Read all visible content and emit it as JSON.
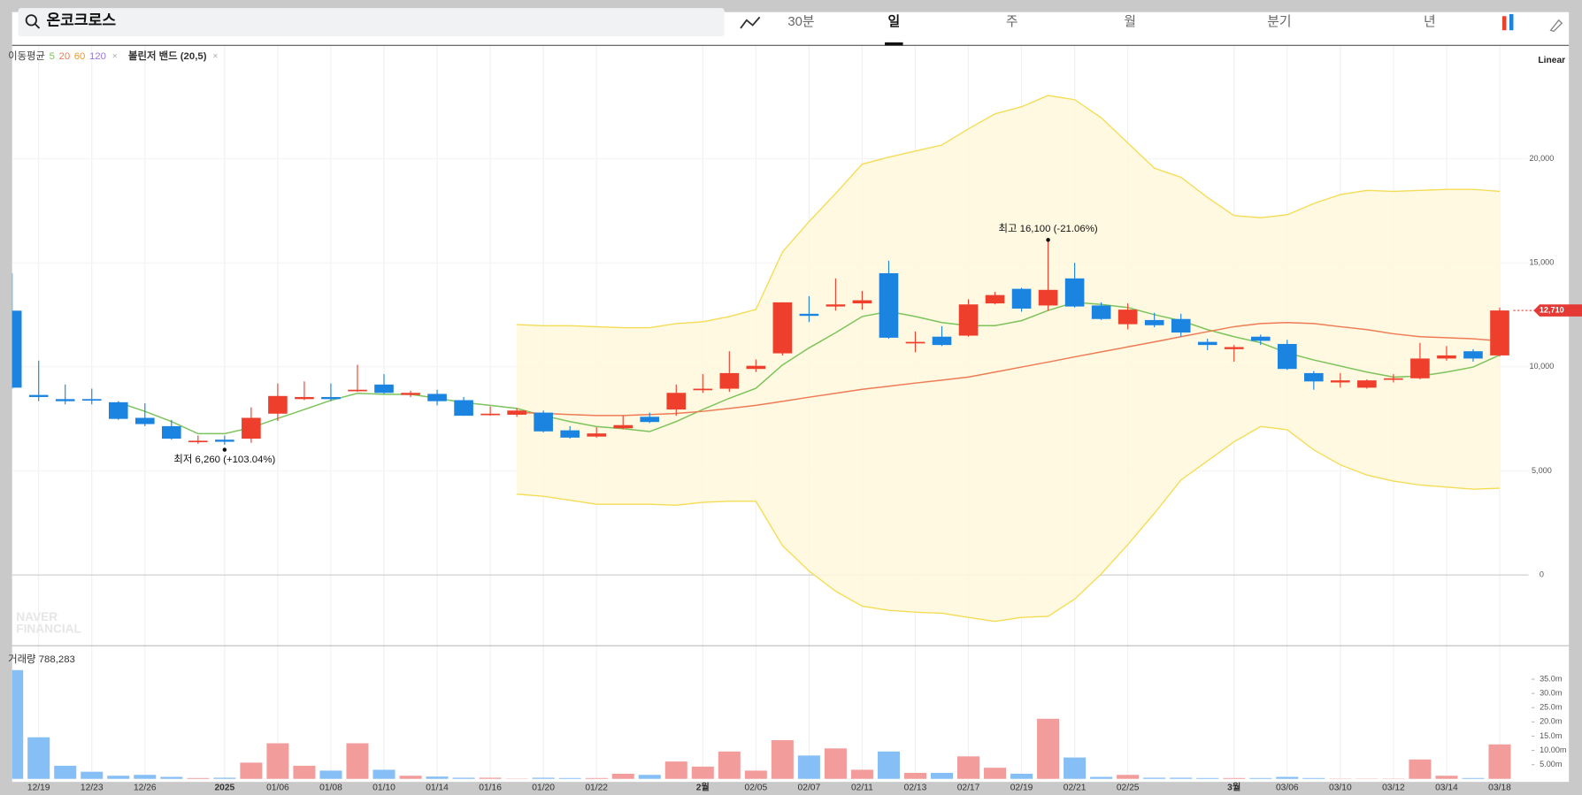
{
  "toolbar": {
    "search": "온코크로스",
    "tabs": [
      "30분",
      "일",
      "주",
      "월",
      "분기",
      "년"
    ],
    "active_tab": 1
  },
  "watermark": [
    "NAVER",
    "FINANCIAL"
  ],
  "chart_data": {
    "type": "candlestick",
    "categories": [
      null,
      "12/19",
      null,
      "12/23",
      null,
      "12/26",
      null,
      null,
      "2025",
      null,
      "01/06",
      null,
      "01/08",
      null,
      "01/10",
      null,
      "01/14",
      null,
      "01/16",
      null,
      "01/20",
      null,
      "01/22",
      null,
      null,
      null,
      "2월",
      null,
      "02/05",
      null,
      "02/07",
      null,
      "02/11",
      null,
      "02/13",
      null,
      "02/17",
      null,
      "02/19",
      null,
      "02/21",
      null,
      "02/25",
      null,
      null,
      null,
      "3월",
      null,
      "03/06",
      null,
      "03/10",
      null,
      "03/12",
      null,
      "03/14",
      null,
      "03/18"
    ],
    "open": [
      12700,
      8650,
      8450,
      8450,
      8300,
      7550,
      7150,
      6400,
      6500,
      6550,
      7750,
      8450,
      8550,
      8850,
      9150,
      8650,
      8700,
      8400,
      7700,
      7700,
      7800,
      6950,
      6650,
      7050,
      7600,
      7950,
      8900,
      8950,
      9900,
      10650,
      12550,
      12900,
      13050,
      14500,
      11150,
      11450,
      11500,
      13050,
      13750,
      12950,
      14250,
      12950,
      12050,
      12250,
      12300,
      11200,
      10850,
      11450,
      11100,
      9700,
      9250,
      9000,
      9400,
      9450,
      10400,
      10750,
      10550
    ],
    "high": [
      14500,
      10300,
      9150,
      8950,
      8350,
      8250,
      7450,
      6700,
      6700,
      8050,
      9200,
      9300,
      9200,
      10100,
      9650,
      8850,
      8900,
      8550,
      8100,
      8000,
      7900,
      7150,
      7100,
      7650,
      7800,
      9150,
      9650,
      10750,
      10350,
      13100,
      13400,
      14250,
      13650,
      15100,
      11700,
      11950,
      13250,
      13600,
      13800,
      16100,
      15000,
      13100,
      13050,
      12600,
      12550,
      11350,
      11050,
      11550,
      11300,
      9800,
      9700,
      9400,
      9650,
      11150,
      11000,
      10850,
      12850
    ],
    "low": [
      8950,
      8350,
      8200,
      8200,
      7450,
      7150,
      6500,
      6300,
      6260,
      6350,
      7400,
      8400,
      8350,
      8800,
      8700,
      8550,
      8150,
      7650,
      7650,
      7600,
      6850,
      6550,
      6600,
      7000,
      7300,
      7650,
      8750,
      8800,
      9750,
      10550,
      12150,
      12700,
      12750,
      11350,
      10700,
      11000,
      11450,
      13000,
      12650,
      12700,
      12850,
      12250,
      11800,
      11900,
      11450,
      10800,
      10250,
      11050,
      9850,
      8900,
      9000,
      8950,
      9250,
      9400,
      10300,
      10250,
      10500
    ],
    "close": [
      9000,
      8550,
      8350,
      8380,
      7500,
      7250,
      6550,
      6450,
      6400,
      7550,
      8600,
      8550,
      8450,
      8900,
      8750,
      8750,
      8350,
      7650,
      7750,
      7900,
      6900,
      6600,
      6800,
      7200,
      7350,
      8750,
      8950,
      9700,
      10050,
      13100,
      12450,
      13000,
      13200,
      11400,
      11200,
      11050,
      13000,
      13450,
      12800,
      13700,
      12900,
      12300,
      12750,
      12000,
      11650,
      11050,
      10950,
      11250,
      9900,
      9300,
      9350,
      9350,
      9450,
      10400,
      10550,
      10400,
      12710
    ],
    "up_color": "#ee3f2c",
    "down_color": "#1a84e0",
    "ylim": [
      -3400,
      25400
    ],
    "yticks": [
      0,
      {
        "value": 5000,
        "label": "5,000"
      },
      {
        "value": 10000,
        "label": "10,000"
      },
      {
        "value": 15000,
        "label": "15,000"
      },
      {
        "value": 20000,
        "label": "20,000"
      }
    ],
    "last_price": {
      "value": 12710,
      "label": "12,710"
    },
    "scale_label": "Linear",
    "ma_label": "이동평균",
    "ma_series": [
      {
        "name": "5",
        "color": "#7cc35a",
        "values": [
          null,
          null,
          null,
          null,
          8290,
          7860,
          7370,
          6790,
          6790,
          7080,
          7520,
          7950,
          8390,
          8730,
          8680,
          8680,
          8490,
          8290,
          8150,
          8000,
          7660,
          7370,
          7130,
          7030,
          6890,
          7370,
          7950,
          8490,
          8970,
          10090,
          10910,
          11640,
          12420,
          12660,
          12420,
          12130,
          11980,
          11980,
          12220,
          12710,
          13100,
          13000,
          12850,
          12510,
          12220,
          11790,
          11450,
          11160,
          10670,
          10330,
          10040,
          9750,
          9510,
          9560,
          9750,
          9990,
          10570
        ]
      },
      {
        "name": "20",
        "color": "#ef7b55",
        "values": [
          null,
          null,
          null,
          null,
          null,
          null,
          null,
          null,
          null,
          null,
          null,
          null,
          null,
          null,
          null,
          null,
          null,
          null,
          null,
          7810,
          7760,
          7710,
          7660,
          7660,
          7710,
          7760,
          7860,
          8000,
          8150,
          8340,
          8540,
          8730,
          8920,
          9070,
          9220,
          9360,
          9510,
          9750,
          9990,
          10230,
          10480,
          10720,
          10960,
          11200,
          11450,
          11690,
          11930,
          12080,
          12130,
          12080,
          11930,
          11790,
          11590,
          11450,
          11400,
          11350,
          11250
        ]
      },
      {
        "name": "60",
        "color": "#f09a2a",
        "values": [
          null,
          null,
          null,
          null,
          null,
          null,
          null,
          null,
          null,
          null,
          null,
          null,
          null,
          null,
          null,
          null,
          null,
          null,
          null,
          null,
          null,
          null,
          null,
          null,
          null,
          null,
          null,
          null,
          null,
          null,
          null,
          null,
          null,
          null,
          null,
          null,
          null,
          null,
          null,
          null,
          null,
          null,
          null,
          null,
          null,
          null,
          null,
          null,
          null,
          null,
          null,
          null,
          null,
          null,
          null,
          null,
          null
        ]
      },
      {
        "name": "120",
        "color": "#9a78d8",
        "values": [
          null,
          null,
          null,
          null,
          null,
          null,
          null,
          null,
          null,
          null,
          null,
          null,
          null,
          null,
          null,
          null,
          null,
          null,
          null,
          null,
          null,
          null,
          null,
          null,
          null,
          null,
          null,
          null,
          null,
          null,
          null,
          null,
          null,
          null,
          null,
          null,
          null,
          null,
          null,
          null,
          null,
          null,
          null,
          null,
          null,
          null,
          null,
          null,
          null,
          null,
          null,
          null,
          null,
          null,
          null,
          null,
          null
        ]
      }
    ],
    "bollinger": {
      "label": "볼린저 밴드 (20,5)",
      "color": "#f5dc55",
      "fill": "#fff8dc",
      "upper": [
        null,
        null,
        null,
        null,
        null,
        null,
        null,
        null,
        null,
        null,
        null,
        null,
        null,
        null,
        null,
        null,
        null,
        null,
        null,
        12030,
        11980,
        11980,
        11930,
        11880,
        11880,
        12080,
        12170,
        12420,
        12760,
        15520,
        16980,
        18330,
        19740,
        20080,
        20370,
        20660,
        21440,
        22160,
        22500,
        23040,
        22840,
        21970,
        20760,
        19550,
        19110,
        18140,
        17270,
        17170,
        17310,
        17850,
        18280,
        18480,
        18430,
        18480,
        18530,
        18530,
        18430
      ],
      "lower": [
        null,
        null,
        null,
        null,
        null,
        null,
        null,
        null,
        null,
        null,
        null,
        null,
        null,
        null,
        null,
        null,
        null,
        null,
        null,
        3880,
        3780,
        3590,
        3400,
        3400,
        3400,
        3350,
        3490,
        3540,
        3540,
        1410,
        190,
        -780,
        -1500,
        -1700,
        -1790,
        -1840,
        -2040,
        -2230,
        -2040,
        -1990,
        -1160,
        50,
        1460,
        2960,
        4560,
        5480,
        6400,
        7130,
        6980,
        6010,
        5290,
        4800,
        4510,
        4320,
        4220,
        4120,
        4170
      ]
    },
    "annotations": {
      "low": "최저 6,260 (+103.04%)",
      "high": "최고 16,100 (-21.06%)"
    },
    "volume": {
      "label": "거래량 788,283",
      "up_color": "#f39c9c",
      "down_color": "#86bff5",
      "values": [
        38.2,
        14.6,
        4.6,
        2.5,
        1.1,
        1.4,
        0.7,
        0.3,
        0.4,
        5.7,
        12.5,
        4.6,
        2.9,
        12.5,
        3.2,
        1.1,
        0.8,
        0.4,
        0.4,
        0.1,
        0.4,
        0.3,
        0.3,
        1.8,
        1.4,
        6.1,
        4.3,
        9.6,
        2.9,
        13.6,
        8.2,
        10.7,
        3.2,
        9.6,
        2.1,
        2.1,
        7.9,
        3.9,
        1.8,
        21.1,
        7.5,
        0.7,
        1.4,
        0.4,
        0.4,
        0.3,
        0.3,
        0.3,
        0.7,
        0.3,
        0.1,
        0.1,
        0.1,
        6.8,
        1.1,
        0.3,
        12.1
      ],
      "ylim": [
        0,
        45
      ],
      "yticks": [
        {
          "value": 5,
          "label": "5.00m"
        },
        {
          "value": 10,
          "label": "10.00m"
        },
        {
          "value": 15,
          "label": "15.0m"
        },
        {
          "value": 20,
          "label": "20.0m"
        },
        {
          "value": 25,
          "label": "25.0m"
        },
        {
          "value": 30,
          "label": "30.0m"
        },
        {
          "value": 35,
          "label": "35.0m"
        }
      ]
    }
  }
}
